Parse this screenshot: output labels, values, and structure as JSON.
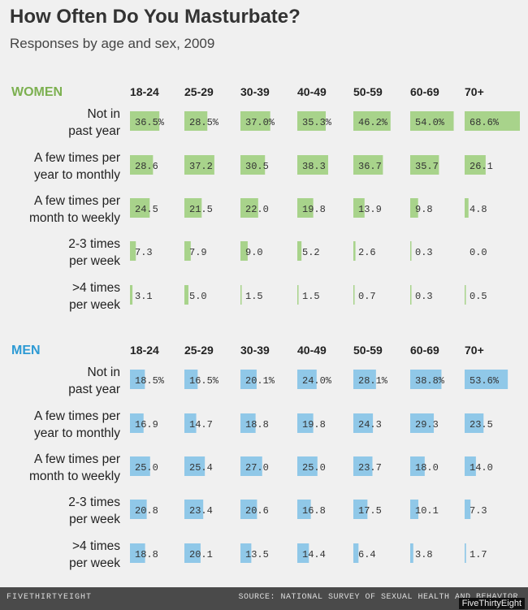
{
  "title": "How Often Do You Masturbate?",
  "subtitle": "Responses by age and sex, 2009",
  "footer": {
    "logo": "FIVETHIRTYEIGHT",
    "source": "SOURCE: NATIONAL SURVEY OF SEXUAL HEALTH AND BEHAVIOR",
    "credit": "FiveThirtyEight"
  },
  "colors": {
    "women": "#a8d38b",
    "men": "#90c8e8",
    "women_label": "#7cb050",
    "men_label": "#2d9ad4"
  },
  "chart_data": {
    "type": "table",
    "age_groups": [
      "18-24",
      "25-29",
      "30-39",
      "40-49",
      "50-59",
      "60-69",
      "70+"
    ],
    "frequencies": [
      "Not in past year",
      "A few times per year to monthly",
      "A few times per month to weekly",
      "2-3 times per week",
      ">4 times per week"
    ],
    "groups": [
      {
        "name": "WOMEN",
        "values": [
          [
            36.5,
            28.5,
            37.0,
            35.3,
            46.2,
            54.0,
            68.6
          ],
          [
            28.6,
            37.2,
            30.5,
            38.3,
            36.7,
            35.7,
            26.1
          ],
          [
            24.5,
            21.5,
            22.0,
            19.8,
            13.9,
            9.8,
            4.8
          ],
          [
            7.3,
            7.9,
            9.0,
            5.2,
            2.6,
            0.3,
            0.0
          ],
          [
            3.1,
            5.0,
            1.5,
            1.5,
            0.7,
            0.3,
            0.5
          ]
        ]
      },
      {
        "name": "MEN",
        "values": [
          [
            18.5,
            16.5,
            20.1,
            24.0,
            28.1,
            38.8,
            53.6
          ],
          [
            16.9,
            14.7,
            18.8,
            19.8,
            24.3,
            29.3,
            23.5
          ],
          [
            25.0,
            25.4,
            27.0,
            25.0,
            23.7,
            18.0,
            14.0
          ],
          [
            20.8,
            23.4,
            20.6,
            16.8,
            17.5,
            10.1,
            7.3
          ],
          [
            18.8,
            20.1,
            13.5,
            14.4,
            6.4,
            3.8,
            1.7
          ]
        ]
      }
    ]
  }
}
